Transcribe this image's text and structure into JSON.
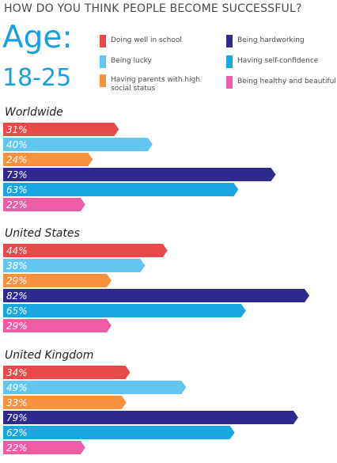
{
  "title": "HOW DO YOU THINK PEOPLE BECOME SUCCESSFUL?",
  "age_label": "Age:",
  "age_range": "18-25",
  "legend": [
    {
      "label": "Doing well in school",
      "color": "#e84a4a"
    },
    {
      "label": "Being lucky",
      "color": "#63c6f0"
    },
    {
      "label": "Having parents with high social status",
      "color": "#f7913e"
    },
    {
      "label": "Being hardworking",
      "color": "#2e2a8e"
    },
    {
      "label": "Having self-confidence",
      "color": "#1aa6e0"
    },
    {
      "label": "Being healthy and beautiful",
      "color": "#ef5ca6"
    }
  ],
  "chart_data": {
    "type": "bar",
    "categories": [
      "Doing well in school",
      "Being lucky",
      "Having parents with high social status",
      "Being hardworking",
      "Having self-confidence",
      "Being healthy and beautiful"
    ],
    "groups": [
      {
        "name": "Worldwide",
        "values": [
          31,
          40,
          24,
          73,
          63,
          22
        ],
        "labels": [
          "31%",
          "40%",
          "24%",
          "73%",
          "63%",
          "22%"
        ]
      },
      {
        "name": "United States",
        "values": [
          44,
          38,
          29,
          82,
          65,
          29
        ],
        "labels": [
          "44%",
          "38%",
          "29%",
          "82%",
          "65%",
          "29%"
        ]
      },
      {
        "name": "United Kingdom",
        "values": [
          34,
          49,
          33,
          79,
          62,
          22
        ],
        "labels": [
          "34%",
          "49%",
          "33%",
          "79%",
          "62%",
          "22%"
        ]
      }
    ],
    "colors": [
      "#e84a4a",
      "#63c6f0",
      "#f7913e",
      "#2e2a8e",
      "#1aa6e0",
      "#ef5ca6"
    ]
  }
}
